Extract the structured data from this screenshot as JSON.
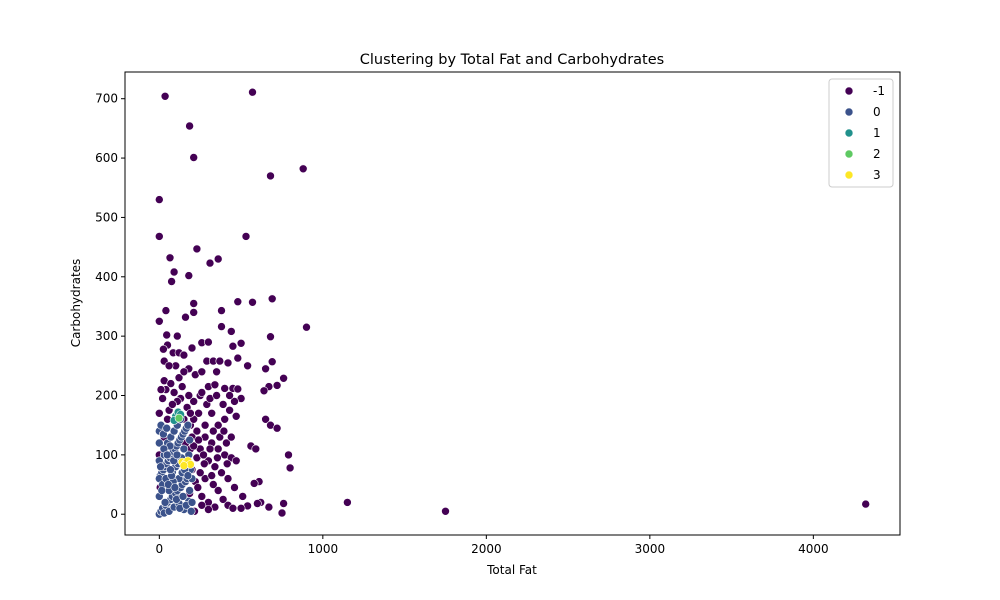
{
  "chart_data": {
    "type": "scatter",
    "title": "Clustering by Total Fat and Carbohydrates",
    "xlabel": "Total Fat",
    "ylabel": "Carbohydrates",
    "xlim": [
      -210,
      4530
    ],
    "ylim": [
      -35,
      745
    ],
    "xticks": [
      0,
      1000,
      2000,
      3000,
      4000
    ],
    "yticks": [
      0,
      100,
      200,
      300,
      400,
      500,
      600,
      700
    ],
    "grid": false,
    "legend_position": "top-right",
    "legend_title": "",
    "series": [
      {
        "name": "-1",
        "color": "#440154",
        "points": [
          [
            35,
            704
          ],
          [
            570,
            711
          ],
          [
            185,
            654
          ],
          [
            210,
            601
          ],
          [
            880,
            582
          ],
          [
            680,
            570
          ],
          [
            0,
            530
          ],
          [
            0,
            468
          ],
          [
            530,
            468
          ],
          [
            230,
            447
          ],
          [
            65,
            432
          ],
          [
            360,
            430
          ],
          [
            310,
            423
          ],
          [
            90,
            408
          ],
          [
            180,
            402
          ],
          [
            75,
            392
          ],
          [
            690,
            363
          ],
          [
            480,
            358
          ],
          [
            570,
            357
          ],
          [
            210,
            355
          ],
          [
            40,
            343
          ],
          [
            210,
            340
          ],
          [
            380,
            343
          ],
          [
            160,
            332
          ],
          [
            0,
            325
          ],
          [
            900,
            315
          ],
          [
            380,
            316
          ],
          [
            440,
            308
          ],
          [
            110,
            300
          ],
          [
            680,
            299
          ],
          [
            45,
            302
          ],
          [
            50,
            285
          ],
          [
            260,
            289
          ],
          [
            300,
            290
          ],
          [
            500,
            288
          ],
          [
            25,
            278
          ],
          [
            85,
            272
          ],
          [
            120,
            272
          ],
          [
            150,
            268
          ],
          [
            200,
            280
          ],
          [
            450,
            283
          ],
          [
            30,
            258
          ],
          [
            290,
            258
          ],
          [
            330,
            258
          ],
          [
            370,
            258
          ],
          [
            420,
            255
          ],
          [
            480,
            263
          ],
          [
            690,
            257
          ],
          [
            540,
            250
          ],
          [
            650,
            245
          ],
          [
            760,
            229
          ],
          [
            720,
            217
          ],
          [
            670,
            215
          ],
          [
            640,
            208
          ],
          [
            30,
            225
          ],
          [
            70,
            220
          ],
          [
            120,
            230
          ],
          [
            180,
            245
          ],
          [
            220,
            235
          ],
          [
            260,
            240
          ],
          [
            350,
            240
          ],
          [
            400,
            212
          ],
          [
            450,
            212
          ],
          [
            480,
            211
          ],
          [
            300,
            215
          ],
          [
            340,
            218
          ],
          [
            250,
            200
          ],
          [
            210,
            190
          ],
          [
            170,
            180
          ],
          [
            130,
            195
          ],
          [
            90,
            205
          ],
          [
            40,
            210
          ],
          [
            20,
            195
          ],
          [
            60,
            175
          ],
          [
            100,
            165
          ],
          [
            150,
            160
          ],
          [
            190,
            150
          ],
          [
            230,
            140
          ],
          [
            280,
            130
          ],
          [
            320,
            120
          ],
          [
            360,
            110
          ],
          [
            400,
            100
          ],
          [
            440,
            95
          ],
          [
            470,
            90
          ],
          [
            500,
            195
          ],
          [
            460,
            190
          ],
          [
            430,
            175
          ],
          [
            400,
            160
          ],
          [
            360,
            150
          ],
          [
            320,
            170
          ],
          [
            290,
            185
          ],
          [
            240,
            170
          ],
          [
            200,
            130
          ],
          [
            250,
            110
          ],
          [
            300,
            90
          ],
          [
            340,
            80
          ],
          [
            380,
            70
          ],
          [
            420,
            60
          ],
          [
            460,
            45
          ],
          [
            510,
            30
          ],
          [
            560,
            115
          ],
          [
            590,
            110
          ],
          [
            650,
            160
          ],
          [
            680,
            150
          ],
          [
            720,
            145
          ],
          [
            610,
            55
          ],
          [
            580,
            52
          ],
          [
            620,
            20
          ],
          [
            600,
            18
          ],
          [
            540,
            14
          ],
          [
            500,
            10
          ],
          [
            670,
            12
          ],
          [
            760,
            18
          ],
          [
            750,
            2
          ],
          [
            790,
            100
          ],
          [
            800,
            78
          ],
          [
            1150,
            20
          ],
          [
            1750,
            5
          ],
          [
            4320,
            17
          ],
          [
            360,
            40
          ],
          [
            330,
            50
          ],
          [
            280,
            60
          ],
          [
            250,
            70
          ],
          [
            220,
            55
          ],
          [
            260,
            30
          ],
          [
            300,
            20
          ],
          [
            340,
            12
          ],
          [
            390,
            25
          ],
          [
            420,
            15
          ],
          [
            450,
            10
          ],
          [
            230,
            95
          ],
          [
            270,
            100
          ],
          [
            190,
            110
          ],
          [
            160,
            120
          ],
          [
            210,
            115
          ],
          [
            330,
            140
          ],
          [
            370,
            130
          ],
          [
            410,
            120
          ],
          [
            440,
            130
          ],
          [
            210,
            160
          ],
          [
            180,
            200
          ],
          [
            140,
            215
          ],
          [
            110,
            190
          ],
          [
            80,
            185
          ],
          [
            50,
            160
          ],
          [
            30,
            130
          ],
          [
            280,
            150
          ],
          [
            260,
            205
          ],
          [
            310,
            195
          ],
          [
            350,
            200
          ],
          [
            390,
            185
          ],
          [
            430,
            200
          ],
          [
            470,
            165
          ],
          [
            240,
            125
          ],
          [
            275,
            85
          ],
          [
            310,
            110
          ],
          [
            200,
            75
          ],
          [
            235,
            45
          ],
          [
            185,
            35
          ],
          [
            260,
            15
          ],
          [
            300,
            8
          ],
          [
            215,
            5
          ],
          [
            320,
            65
          ],
          [
            355,
            95
          ],
          [
            395,
            140
          ],
          [
            415,
            85
          ],
          [
            190,
            170
          ],
          [
            150,
            240
          ],
          [
            100,
            250
          ],
          [
            60,
            250
          ],
          [
            10,
            210
          ],
          [
            0,
            170
          ],
          [
            0,
            100
          ],
          [
            5,
            45
          ]
        ]
      },
      {
        "name": "0",
        "color": "#3b528b",
        "points": [
          [
            0,
            0
          ],
          [
            10,
            5
          ],
          [
            20,
            10
          ],
          [
            30,
            2
          ],
          [
            40,
            15
          ],
          [
            50,
            20
          ],
          [
            60,
            5
          ],
          [
            70,
            25
          ],
          [
            80,
            30
          ],
          [
            90,
            12
          ],
          [
            100,
            35
          ],
          [
            110,
            40
          ],
          [
            120,
            18
          ],
          [
            130,
            45
          ],
          [
            140,
            50
          ],
          [
            150,
            8
          ],
          [
            160,
            55
          ],
          [
            170,
            60
          ],
          [
            180,
            22
          ],
          [
            5,
            65
          ],
          [
            15,
            70
          ],
          [
            25,
            75
          ],
          [
            35,
            80
          ],
          [
            45,
            85
          ],
          [
            55,
            90
          ],
          [
            65,
            95
          ],
          [
            75,
            100
          ],
          [
            85,
            105
          ],
          [
            95,
            110
          ],
          [
            105,
            115
          ],
          [
            115,
            120
          ],
          [
            125,
            125
          ],
          [
            135,
            130
          ],
          [
            145,
            135
          ],
          [
            155,
            140
          ],
          [
            165,
            145
          ],
          [
            175,
            150
          ],
          [
            185,
            125
          ],
          [
            0,
            140
          ],
          [
            0,
            120
          ],
          [
            0,
            90
          ],
          [
            0,
            60
          ],
          [
            0,
            30
          ],
          [
            20,
            50
          ],
          [
            40,
            60
          ],
          [
            60,
            40
          ],
          [
            80,
            70
          ],
          [
            100,
            80
          ],
          [
            120,
            60
          ],
          [
            140,
            70
          ],
          [
            160,
            90
          ],
          [
            180,
            100
          ],
          [
            30,
            100
          ],
          [
            50,
            120
          ],
          [
            70,
            130
          ],
          [
            90,
            140
          ],
          [
            110,
            150
          ],
          [
            130,
            160
          ],
          [
            150,
            110
          ],
          [
            170,
            85
          ],
          [
            190,
            75
          ],
          [
            10,
            150
          ],
          [
            25,
            135
          ],
          [
            45,
            145
          ],
          [
            65,
            115
          ],
          [
            85,
            55
          ],
          [
            105,
            25
          ],
          [
            125,
            10
          ],
          [
            145,
            30
          ],
          [
            165,
            15
          ],
          [
            185,
            40
          ],
          [
            200,
            60
          ],
          [
            200,
            20
          ],
          [
            15,
            40
          ],
          [
            35,
            20
          ],
          [
            55,
            50
          ],
          [
            75,
            65
          ],
          [
            95,
            45
          ],
          [
            115,
            85
          ],
          [
            135,
            95
          ],
          [
            155,
            75
          ],
          [
            175,
            65
          ],
          [
            195,
            5
          ],
          [
            8,
            80
          ],
          [
            28,
            110
          ],
          [
            48,
            100
          ],
          [
            68,
            75
          ],
          [
            88,
            90
          ],
          [
            108,
            100
          ]
        ]
      },
      {
        "name": "1",
        "color": "#21918c",
        "points": [
          [
            100,
            165
          ],
          [
            115,
            172
          ],
          [
            90,
            158
          ],
          [
            130,
            168
          ]
        ]
      },
      {
        "name": "2",
        "color": "#5ec962",
        "points": [
          [
            120,
            162
          ]
        ]
      },
      {
        "name": "3",
        "color": "#fde725",
        "points": [
          [
            140,
            88
          ],
          [
            160,
            86
          ],
          [
            175,
            90
          ],
          [
            190,
            84
          ],
          [
            150,
            82
          ]
        ]
      }
    ]
  }
}
